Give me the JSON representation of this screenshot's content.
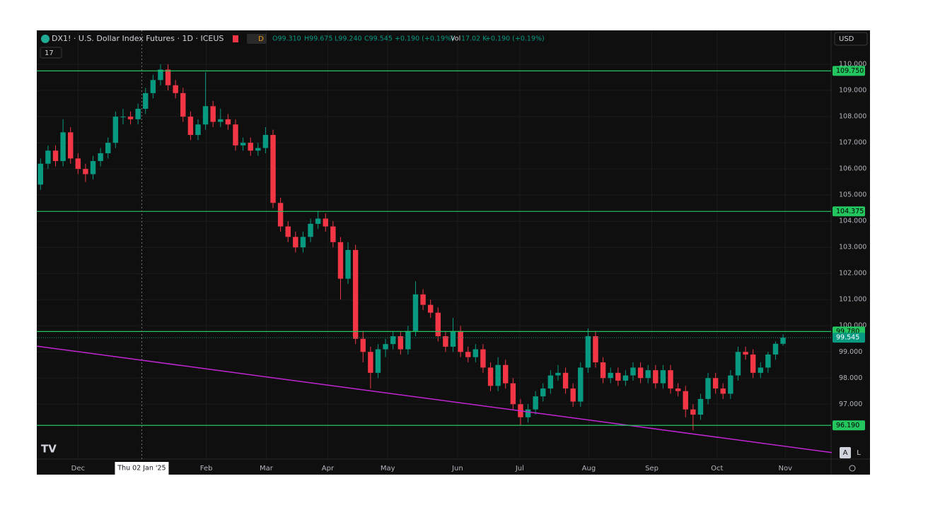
{
  "header": {
    "symbol": "DX1! · U.S. Dollar Index Futures · 1D · ICEUS",
    "badge": "D",
    "indicator_count": "17",
    "ohlc": [
      "O99.310",
      "H99.675",
      "L99.240",
      "C99.545",
      "+0.190 (+0.19%)"
    ],
    "volume": [
      "Vol",
      "17.02 K",
      "+0.190 (+0.19%)"
    ],
    "currency": "USD",
    "buttons": [
      "A",
      "L"
    ]
  },
  "chart_data": {
    "type": "candlestick",
    "up_color": "#089981",
    "down_color": "#f23645",
    "grid": true,
    "xlim": [
      -0.5,
      105.5
    ],
    "xticks": [
      {
        "value": 5,
        "label": "Dec"
      },
      {
        "value": 22.1,
        "label": "Feb"
      },
      {
        "value": 30.1,
        "label": "Mar"
      },
      {
        "value": 38.3,
        "label": "Apr"
      },
      {
        "value": 46.3,
        "label": "May"
      },
      {
        "value": 55.6,
        "label": "Jun"
      },
      {
        "value": 63.9,
        "label": "Jul"
      },
      {
        "value": 73.1,
        "label": "Aug"
      },
      {
        "value": 81.5,
        "label": "Sep"
      },
      {
        "value": 90.2,
        "label": "Oct"
      },
      {
        "value": 99.3,
        "label": "Nov"
      }
    ],
    "crosshair": {
      "x": 13.5,
      "label": "Thu 02 Jan '25"
    },
    "ylim": [
      94.9,
      111.3
    ],
    "yticks": [
      {
        "value": 110,
        "label": "110.000"
      },
      {
        "value": 109,
        "label": "109.000"
      },
      {
        "value": 108,
        "label": "108.000"
      },
      {
        "value": 107,
        "label": "107.000"
      },
      {
        "value": 106,
        "label": "106.000"
      },
      {
        "value": 105,
        "label": "105.000"
      },
      {
        "value": 104,
        "label": "104.000"
      },
      {
        "value": 103,
        "label": "103.000"
      },
      {
        "value": 102,
        "label": "102.000"
      },
      {
        "value": 101,
        "label": "101.000"
      },
      {
        "value": 100,
        "label": "100.000"
      },
      {
        "value": 99,
        "label": "99.000"
      },
      {
        "value": 98,
        "label": "98.000"
      },
      {
        "value": 97,
        "label": "97.000"
      }
    ],
    "open": [
      105.4,
      106.2,
      106.7,
      106.3,
      107.4,
      106.4,
      106.0,
      105.8,
      106.3,
      106.6,
      107.0,
      108.0,
      108.0,
      107.9,
      108.3,
      108.9,
      109.4,
      109.8,
      109.2,
      108.9,
      108.0,
      107.3,
      107.7,
      108.4,
      107.8,
      107.9,
      107.7,
      106.9,
      107.0,
      106.7,
      106.8,
      107.3,
      104.7,
      103.8,
      103.4,
      103.0,
      103.4,
      103.9,
      104.1,
      103.8,
      103.2,
      101.8,
      102.9,
      99.5,
      99.0,
      98.2,
      99.1,
      99.3,
      99.6,
      99.1,
      99.8,
      101.2,
      100.8,
      100.5,
      99.6,
      99.2,
      99.8,
      99.0,
      98.8,
      99.1,
      98.4,
      97.7,
      98.5,
      97.8,
      97.0,
      96.5,
      96.8,
      97.3,
      97.6,
      98.1,
      98.2,
      97.6,
      97.1,
      98.4,
      99.6,
      98.6,
      98.0,
      98.2,
      97.9,
      98.1,
      98.4,
      98.0,
      98.3,
      97.8,
      98.3,
      97.6,
      97.5,
      96.8,
      96.6,
      97.2,
      98.0,
      97.6,
      97.4,
      98.1,
      99.0,
      98.9,
      98.2,
      98.4,
      98.9,
      99.31
    ],
    "high": [
      106.4,
      106.9,
      106.9,
      107.9,
      107.6,
      106.6,
      106.2,
      106.5,
      106.8,
      107.2,
      108.2,
      108.3,
      108.2,
      108.5,
      109.1,
      109.6,
      110.0,
      110.0,
      109.4,
      109.1,
      108.2,
      107.9,
      109.7,
      108.6,
      108.3,
      108.1,
      107.9,
      107.2,
      107.2,
      107.0,
      107.6,
      107.5,
      104.9,
      104.0,
      103.6,
      103.6,
      104.1,
      104.4,
      104.3,
      104.0,
      103.4,
      103.2,
      103.1,
      99.8,
      99.2,
      99.3,
      99.5,
      99.8,
      99.8,
      100.0,
      101.7,
      101.4,
      101.0,
      100.7,
      99.8,
      100.3,
      100.0,
      99.2,
      99.3,
      99.3,
      98.6,
      98.8,
      98.7,
      98.0,
      97.2,
      97.0,
      97.5,
      97.8,
      98.3,
      98.5,
      98.4,
      97.8,
      98.6,
      99.9,
      99.8,
      98.8,
      98.4,
      98.4,
      98.3,
      98.6,
      98.6,
      98.5,
      98.5,
      98.5,
      98.5,
      97.8,
      97.7,
      97.0,
      97.4,
      98.2,
      98.2,
      97.8,
      98.3,
      99.2,
      99.2,
      99.1,
      98.6,
      99.0,
      99.4,
      99.675
    ],
    "low": [
      105.2,
      106.0,
      106.1,
      106.1,
      106.2,
      105.8,
      105.5,
      105.6,
      106.1,
      106.4,
      106.8,
      107.7,
      107.7,
      107.7,
      108.1,
      108.7,
      109.2,
      109.0,
      108.7,
      107.8,
      107.1,
      107.1,
      107.5,
      107.6,
      107.6,
      107.5,
      106.7,
      106.7,
      106.5,
      106.5,
      106.6,
      104.5,
      103.6,
      103.2,
      102.8,
      102.8,
      103.2,
      103.7,
      103.6,
      103.0,
      101.0,
      101.6,
      99.3,
      98.6,
      97.6,
      98.0,
      98.8,
      99.1,
      98.9,
      98.9,
      99.6,
      100.6,
      100.3,
      99.4,
      99.0,
      99.0,
      98.8,
      98.6,
      98.6,
      98.2,
      97.5,
      97.5,
      97.6,
      96.8,
      96.2,
      96.3,
      96.6,
      97.1,
      97.4,
      97.9,
      97.4,
      96.9,
      96.9,
      98.2,
      98.4,
      97.8,
      97.8,
      97.7,
      97.7,
      97.9,
      97.8,
      97.8,
      97.6,
      97.6,
      97.4,
      97.3,
      96.5,
      96.0,
      96.4,
      97.0,
      97.4,
      97.2,
      97.2,
      97.9,
      98.7,
      98.0,
      98.0,
      98.2,
      98.7,
      99.24
    ],
    "close": [
      106.2,
      106.7,
      106.3,
      107.4,
      106.4,
      106.0,
      105.8,
      106.3,
      106.6,
      107.0,
      108.0,
      108.0,
      107.9,
      108.3,
      108.9,
      109.4,
      109.8,
      109.2,
      108.9,
      108.0,
      107.3,
      107.7,
      108.4,
      107.8,
      107.9,
      107.7,
      106.9,
      107.0,
      106.7,
      106.8,
      107.3,
      104.7,
      103.8,
      103.4,
      103.0,
      103.4,
      103.9,
      104.1,
      103.8,
      103.2,
      101.8,
      102.9,
      99.5,
      99.0,
      98.2,
      99.1,
      99.3,
      99.6,
      99.1,
      99.8,
      101.2,
      100.8,
      100.5,
      99.6,
      99.2,
      99.8,
      99.0,
      98.8,
      99.1,
      98.4,
      97.7,
      98.5,
      97.8,
      97.0,
      96.5,
      96.8,
      97.3,
      97.6,
      98.1,
      98.2,
      97.6,
      97.1,
      98.4,
      99.6,
      98.6,
      98.0,
      98.2,
      97.9,
      98.1,
      98.4,
      98.0,
      98.3,
      97.8,
      98.3,
      97.6,
      97.5,
      96.8,
      96.6,
      97.2,
      98.0,
      97.6,
      97.4,
      98.1,
      99.0,
      98.9,
      98.2,
      98.4,
      98.9,
      99.31,
      99.545
    ],
    "levels": [
      {
        "value": 109.75,
        "label": "109.750"
      },
      {
        "value": 104.375,
        "label": "104.375"
      },
      {
        "value": 99.78,
        "label": "99.780"
      },
      {
        "value": 96.19,
        "label": "96.190"
      }
    ],
    "level_color": "#22c55e",
    "last_price": {
      "value": 99.545,
      "label": "99.545"
    },
    "trendline": {
      "color": "#c026d3",
      "x": [
        -0.5,
        105.5
      ],
      "values": [
        99.22,
        95.15
      ]
    }
  }
}
